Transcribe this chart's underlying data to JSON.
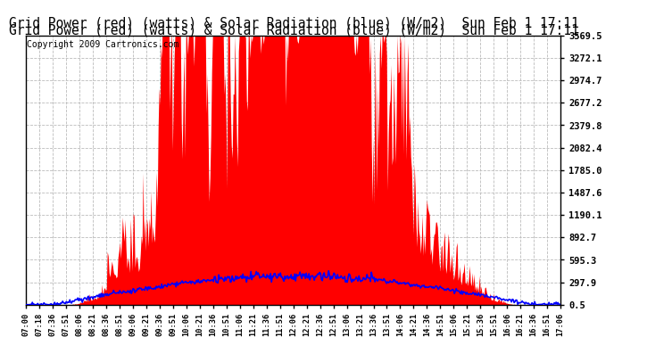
{
  "title": "Grid Power (red) (watts) & Solar Radiation (blue) (W/m2)  Sun Feb 1 17:11",
  "copyright": "Copyright 2009 Cartronics.com",
  "bg_color": "#ffffff",
  "grid_color": "#aaaaaa",
  "yticks": [
    0.5,
    297.9,
    595.3,
    892.7,
    1190.1,
    1487.6,
    1785.0,
    2082.4,
    2379.8,
    2677.2,
    2974.7,
    3272.1,
    3569.5
  ],
  "ymin": 0.5,
  "ymax": 3569.5,
  "xtick_labels": [
    "07:00",
    "07:18",
    "07:36",
    "07:51",
    "08:06",
    "08:21",
    "08:36",
    "08:51",
    "09:06",
    "09:21",
    "09:36",
    "09:51",
    "10:06",
    "10:21",
    "10:36",
    "10:51",
    "11:06",
    "11:21",
    "11:36",
    "11:51",
    "12:06",
    "12:21",
    "12:36",
    "12:51",
    "13:06",
    "13:21",
    "13:36",
    "13:51",
    "14:06",
    "14:21",
    "14:36",
    "14:51",
    "15:06",
    "15:21",
    "15:36",
    "15:51",
    "16:06",
    "16:21",
    "16:36",
    "16:51",
    "17:06"
  ],
  "red_color": "#ff0000",
  "blue_color": "#0000ff",
  "outer_bg": "#ffffff",
  "title_fontsize": 10.5,
  "copyright_fontsize": 7
}
